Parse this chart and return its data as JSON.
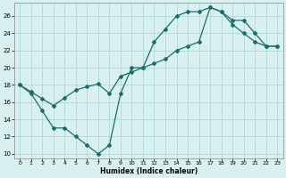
{
  "xlabel": "Humidex (Indice chaleur)",
  "bg_color": "#d8f0f0",
  "grid_color": "#b0d8d8",
  "line_color": "#1a6e6e",
  "xlim": [
    -0.5,
    23.5
  ],
  "ylim": [
    9.5,
    27.5
  ],
  "xticks": [
    0,
    1,
    2,
    3,
    4,
    5,
    6,
    7,
    8,
    9,
    10,
    11,
    12,
    13,
    14,
    15,
    16,
    17,
    18,
    19,
    20,
    21,
    22,
    23
  ],
  "yticks": [
    10,
    12,
    14,
    16,
    18,
    20,
    22,
    24,
    26
  ],
  "line1_x": [
    0,
    1,
    2,
    3,
    4,
    5,
    6,
    7,
    8,
    9,
    10,
    11,
    12,
    13,
    14,
    15,
    16,
    17,
    18,
    19,
    20,
    21,
    22,
    23
  ],
  "line1_y": [
    18,
    17,
    15,
    13,
    13,
    12,
    11,
    10,
    11,
    17,
    20,
    20,
    23,
    24.5,
    26,
    26.5,
    26.5,
    27,
    26.5,
    25,
    24,
    23,
    22.5,
    22.5
  ],
  "line2_x": [
    0,
    1,
    2,
    3,
    4,
    5,
    6,
    7,
    8,
    9,
    10,
    11,
    12,
    13,
    14,
    15,
    16,
    17,
    18,
    19,
    20,
    21,
    22,
    23
  ],
  "line2_y": [
    18,
    17.2,
    16.4,
    15.6,
    16.5,
    17.4,
    17.8,
    18.1,
    17,
    19,
    19.5,
    20,
    20.5,
    21,
    22,
    22.5,
    23,
    27,
    26.5,
    25.5,
    25.5,
    24,
    22.5,
    22.5
  ]
}
